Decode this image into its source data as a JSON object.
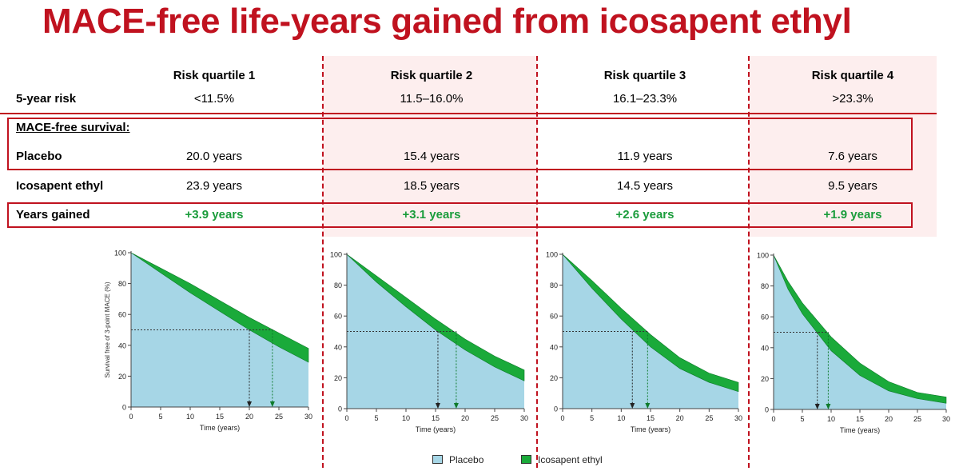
{
  "title": "MACE-free life-years gained from icosapent ethyl",
  "table": {
    "columns": [
      "Risk quartile 1",
      "Risk quartile 2",
      "Risk quartile 3",
      "Risk quartile 4"
    ],
    "rows": {
      "risk": {
        "label": "5-year risk",
        "values": [
          "<11.5%",
          "11.5–16.0%",
          "16.1–23.3%",
          ">23.3%"
        ]
      },
      "section": {
        "label": "MACE-free survival:"
      },
      "placebo": {
        "label": "Placebo",
        "values": [
          "20.0 years",
          "15.4 years",
          "11.9 years",
          "7.6 years"
        ]
      },
      "icosapent": {
        "label": "Icosapent ethyl",
        "values": [
          "23.9 years",
          "18.5 years",
          "14.5 years",
          "9.5 years"
        ]
      },
      "gained": {
        "label": "Years gained",
        "values": [
          "+3.9 years",
          "+3.1 years",
          "+2.6 years",
          "+1.9 years"
        ]
      }
    }
  },
  "colors": {
    "accent": "#c0121f",
    "placebo": "#a6d6e6",
    "icosapent": "#1aaa3a",
    "gain_text": "#1a9c3b",
    "band": "#fdeeee"
  },
  "legend": {
    "placebo": "Placebo",
    "icosapent": "Icosapent ethyl"
  },
  "chart_data": [
    {
      "type": "area",
      "title": "Risk quartile 1",
      "xlabel": "Time (years)",
      "ylabel": "Survival free of 3-point MACE (%)",
      "xlim": [
        0,
        30
      ],
      "ylim": [
        0,
        100
      ],
      "xticks": [
        0,
        5,
        10,
        15,
        20,
        25,
        30
      ],
      "yticks": [
        0,
        20,
        40,
        60,
        80,
        100
      ],
      "x": [
        0,
        5,
        10,
        15,
        20,
        25,
        30
      ],
      "series": [
        {
          "name": "Placebo",
          "values": [
            100,
            87,
            74,
            62,
            50,
            39,
            29
          ]
        },
        {
          "name": "Icosapent ethyl",
          "values": [
            100,
            90,
            80,
            69,
            58,
            48,
            38
          ]
        }
      ],
      "median_reference": 50,
      "median_markers": [
        20.0,
        23.9
      ]
    },
    {
      "type": "area",
      "title": "Risk quartile 2",
      "xlabel": "Time (years)",
      "ylabel": "",
      "xlim": [
        0,
        30
      ],
      "ylim": [
        0,
        100
      ],
      "xticks": [
        0,
        5,
        10,
        15,
        20,
        25,
        30
      ],
      "yticks": [
        0,
        20,
        40,
        60,
        80,
        100
      ],
      "x": [
        0,
        5,
        10,
        15,
        20,
        25,
        30
      ],
      "series": [
        {
          "name": "Placebo",
          "values": [
            100,
            82,
            66,
            51,
            38,
            27,
            18
          ]
        },
        {
          "name": "Icosapent ethyl",
          "values": [
            100,
            86,
            72,
            58,
            45,
            34,
            25
          ]
        }
      ],
      "median_reference": 50,
      "median_markers": [
        15.4,
        18.5
      ]
    },
    {
      "type": "area",
      "title": "Risk quartile 3",
      "xlabel": "Time (years)",
      "ylabel": "",
      "xlim": [
        0,
        30
      ],
      "ylim": [
        0,
        100
      ],
      "xticks": [
        0,
        5,
        10,
        15,
        20,
        25,
        30
      ],
      "yticks": [
        0,
        20,
        40,
        60,
        80,
        100
      ],
      "x": [
        0,
        5,
        10,
        15,
        20,
        25,
        30
      ],
      "series": [
        {
          "name": "Placebo",
          "values": [
            100,
            78,
            58,
            40,
            26,
            17,
            11
          ]
        },
        {
          "name": "Icosapent ethyl",
          "values": [
            100,
            83,
            65,
            48,
            33,
            23,
            17
          ]
        }
      ],
      "median_reference": 50,
      "median_markers": [
        11.9,
        14.5
      ]
    },
    {
      "type": "area",
      "title": "Risk quartile 4",
      "xlabel": "Time (years)",
      "ylabel": "",
      "xlim": [
        0,
        30
      ],
      "ylim": [
        0,
        100
      ],
      "xticks": [
        0,
        5,
        10,
        15,
        20,
        25,
        30
      ],
      "yticks": [
        0,
        20,
        40,
        60,
        80,
        100
      ],
      "x": [
        0,
        2.5,
        5,
        7.5,
        10,
        15,
        20,
        25,
        30
      ],
      "series": [
        {
          "name": "Placebo",
          "values": [
            100,
            78,
            62,
            50,
            38,
            22,
            12,
            7,
            4
          ]
        },
        {
          "name": "Icosapent ethyl",
          "values": [
            100,
            83,
            69,
            58,
            47,
            30,
            18,
            11,
            8
          ]
        }
      ],
      "median_reference": 50,
      "median_markers": [
        7.6,
        9.5
      ]
    }
  ]
}
